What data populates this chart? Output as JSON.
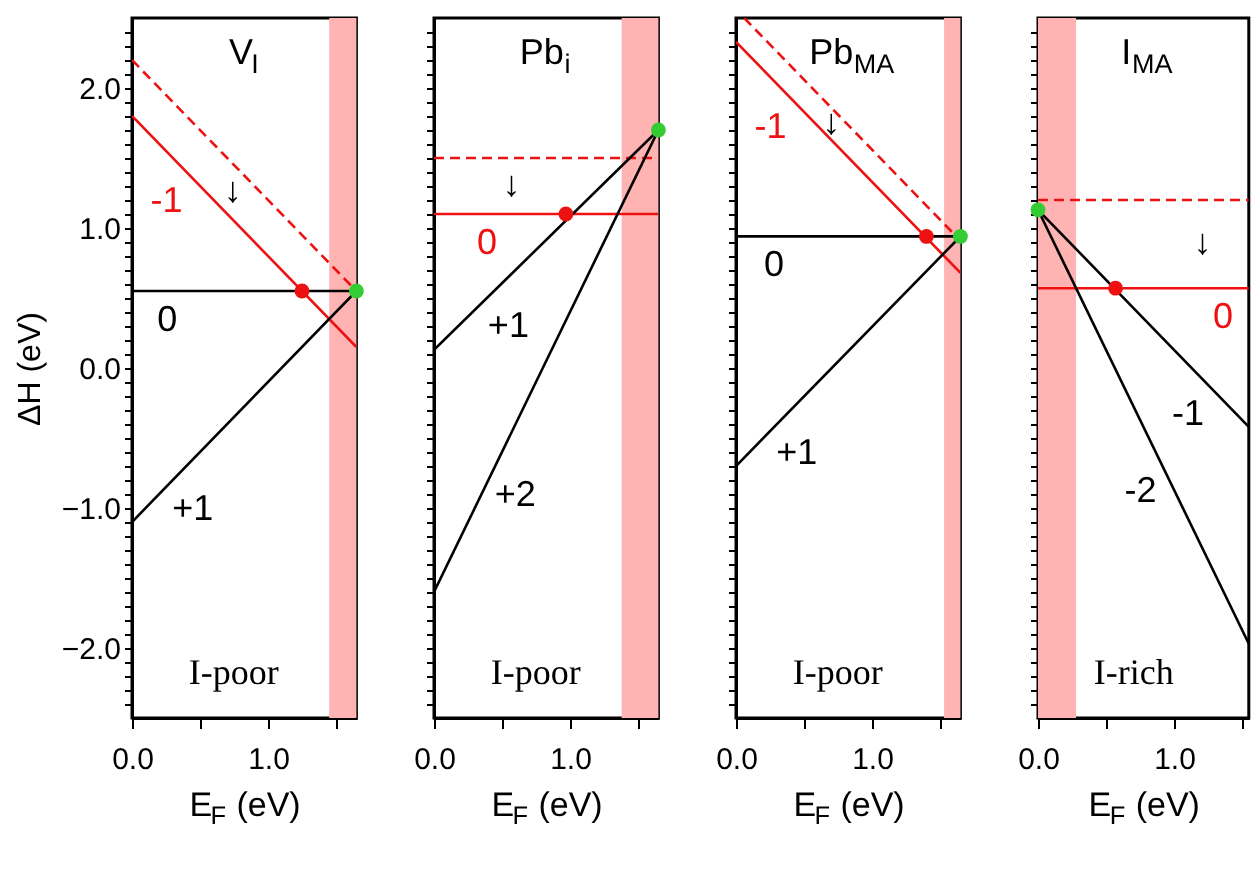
{
  "chart_data": [
    {
      "type": "line",
      "title": "V$_{I}$",
      "xlabel": "E$_{F}$ (eV)",
      "ylabel": "ΔH (eV)",
      "xlim": [
        0,
        1.65
      ],
      "ylim": [
        -2.5,
        2.5
      ],
      "grid": false,
      "xticks": [
        {
          "value": 0,
          "label": "0.0"
        },
        {
          "value": 0.5,
          "label": null
        },
        {
          "value": 1,
          "label": "1.0"
        },
        {
          "value": 1.5,
          "label": null
        }
      ],
      "yticks": [
        {
          "value": -2.4,
          "label": null
        },
        {
          "value": -2.3,
          "label": null
        },
        {
          "value": -2.2,
          "label": null
        },
        {
          "value": -2.1,
          "label": null
        },
        {
          "value": -2,
          "label": "−2.0"
        },
        {
          "value": -1.9,
          "label": null
        },
        {
          "value": -1.8,
          "label": null
        },
        {
          "value": -1.7,
          "label": null
        },
        {
          "value": -1.6,
          "label": null
        },
        {
          "value": -1.5,
          "label": null
        },
        {
          "value": -1.4,
          "label": null
        },
        {
          "value": -1.3,
          "label": null
        },
        {
          "value": -1.2,
          "label": null
        },
        {
          "value": -1.1,
          "label": null
        },
        {
          "value": -1,
          "label": "−1.0"
        },
        {
          "value": -0.9,
          "label": null
        },
        {
          "value": -0.8,
          "label": null
        },
        {
          "value": -0.7,
          "label": null
        },
        {
          "value": -0.6,
          "label": null
        },
        {
          "value": -0.5,
          "label": null
        },
        {
          "value": -0.4,
          "label": null
        },
        {
          "value": -0.3,
          "label": null
        },
        {
          "value": -0.2,
          "label": null
        },
        {
          "value": -0.1,
          "label": null
        },
        {
          "value": 0,
          "label": "0.0"
        },
        {
          "value": 0.1,
          "label": null
        },
        {
          "value": 0.2,
          "label": null
        },
        {
          "value": 0.3,
          "label": null
        },
        {
          "value": 0.4,
          "label": null
        },
        {
          "value": 0.5,
          "label": null
        },
        {
          "value": 0.6,
          "label": null
        },
        {
          "value": 0.7,
          "label": null
        },
        {
          "value": 0.8,
          "label": null
        },
        {
          "value": 0.9,
          "label": null
        },
        {
          "value": 1,
          "label": "1.0"
        },
        {
          "value": 1.1,
          "label": null
        },
        {
          "value": 1.2,
          "label": null
        },
        {
          "value": 1.3,
          "label": null
        },
        {
          "value": 1.4,
          "label": null
        },
        {
          "value": 1.5,
          "label": null
        },
        {
          "value": 1.6,
          "label": null
        },
        {
          "value": 1.7,
          "label": null
        },
        {
          "value": 1.8,
          "label": null
        },
        {
          "value": 1.9,
          "label": null
        },
        {
          "value": 2,
          "label": "2.0"
        },
        {
          "value": 2.1,
          "label": null
        },
        {
          "value": 2.2,
          "label": null
        },
        {
          "value": 2.3,
          "label": null
        },
        {
          "value": 2.4,
          "label": null
        }
      ],
      "bands": [
        {
          "axis": "x",
          "from": 1.45,
          "to": 1.65,
          "color": "#ffb3b3"
        }
      ],
      "series": [
        {
          "color": "#ee1111",
          "line_style": "dashed",
          "x": [
            0,
            1.65
          ],
          "values": [
            2.2,
            0.55
          ]
        },
        {
          "color": "#ee1111",
          "line_style": "solid",
          "x": [
            0,
            1.65
          ],
          "values": [
            1.8,
            0.15
          ]
        },
        {
          "color": "#000000",
          "line_style": "solid",
          "x": [
            0,
            1.65
          ],
          "values": [
            0.55,
            0.55
          ]
        },
        {
          "color": "#000000",
          "line_style": "solid",
          "x": [
            0,
            1.65
          ],
          "values": [
            -1.1,
            0.55
          ]
        },
        {
          "type": "scatter",
          "color": "#ee1111",
          "marker": "circle",
          "x": [
            1.25
          ],
          "values": [
            0.55
          ]
        },
        {
          "type": "scatter",
          "color": "#33cc33",
          "marker": "circle",
          "x": [
            1.65
          ],
          "values": [
            0.55
          ]
        }
      ],
      "annotations": [
        {
          "text": "-1",
          "x": 0.4,
          "y": 1.4
        },
        {
          "text": "↓",
          "x": 0.74,
          "y": 1.46
        },
        {
          "text": "0",
          "x": 0.26,
          "y": 0.55
        },
        {
          "text": "+1",
          "x": 0.3,
          "y": -0.8
        },
        "I-poor"
      ]
    },
    {
      "type": "line",
      "title": "Pb$_{i}$",
      "xlabel": "E$_{F}$ (eV)",
      "xlim": [
        0,
        1.65
      ],
      "ylim": [
        -2.5,
        2.5
      ],
      "grid": false,
      "tick_labels": "x",
      "xticks": [
        {
          "value": 0,
          "label": "0.0"
        },
        {
          "value": 0.5,
          "label": null
        },
        {
          "value": 1,
          "label": "1.0"
        },
        {
          "value": 1.5,
          "label": null
        }
      ],
      "yticks": [
        {
          "value": -2.4,
          "label": null
        },
        {
          "value": -2.3,
          "label": null
        },
        {
          "value": -2.2,
          "label": null
        },
        {
          "value": -2.1,
          "label": null
        },
        {
          "value": -2,
          "label": null
        },
        {
          "value": -1.9,
          "label": null
        },
        {
          "value": -1.8,
          "label": null
        },
        {
          "value": -1.7,
          "label": null
        },
        {
          "value": -1.6,
          "label": null
        },
        {
          "value": -1.5,
          "label": null
        },
        {
          "value": -1.4,
          "label": null
        },
        {
          "value": -1.3,
          "label": null
        },
        {
          "value": -1.2,
          "label": null
        },
        {
          "value": -1.1,
          "label": null
        },
        {
          "value": -1,
          "label": null
        },
        {
          "value": -0.9,
          "label": null
        },
        {
          "value": -0.8,
          "label": null
        },
        {
          "value": -0.7,
          "label": null
        },
        {
          "value": -0.6,
          "label": null
        },
        {
          "value": -0.5,
          "label": null
        },
        {
          "value": -0.4,
          "label": null
        },
        {
          "value": -0.3,
          "label": null
        },
        {
          "value": -0.2,
          "label": null
        },
        {
          "value": -0.1,
          "label": null
        },
        {
          "value": 0,
          "label": null
        },
        {
          "value": 0.1,
          "label": null
        },
        {
          "value": 0.2,
          "label": null
        },
        {
          "value": 0.3,
          "label": null
        },
        {
          "value": 0.4,
          "label": null
        },
        {
          "value": 0.5,
          "label": null
        },
        {
          "value": 0.6,
          "label": null
        },
        {
          "value": 0.7,
          "label": null
        },
        {
          "value": 0.8,
          "label": null
        },
        {
          "value": 0.9,
          "label": null
        },
        {
          "value": 1,
          "label": null
        },
        {
          "value": 1.1,
          "label": null
        },
        {
          "value": 1.2,
          "label": null
        },
        {
          "value": 1.3,
          "label": null
        },
        {
          "value": 1.4,
          "label": null
        },
        {
          "value": 1.5,
          "label": null
        },
        {
          "value": 1.6,
          "label": null
        },
        {
          "value": 1.7,
          "label": null
        },
        {
          "value": 1.8,
          "label": null
        },
        {
          "value": 1.9,
          "label": null
        },
        {
          "value": 2,
          "label": null
        },
        {
          "value": 2.1,
          "label": null
        },
        {
          "value": 2.2,
          "label": null
        },
        {
          "value": 2.3,
          "label": null
        },
        {
          "value": 2.4,
          "label": null
        }
      ],
      "bands": [
        {
          "axis": "x",
          "from": 1.38,
          "to": 1.65,
          "color": "#ffb3b3"
        }
      ],
      "series": [
        {
          "color": "#ee1111",
          "line_style": "dashed",
          "x": [
            0,
            1.65
          ],
          "values": [
            1.5,
            1.5
          ]
        },
        {
          "color": "#ee1111",
          "line_style": "solid",
          "x": [
            0,
            1.65
          ],
          "values": [
            1.1,
            1.1
          ]
        },
        {
          "color": "#000000",
          "line_style": "solid",
          "x": [
            0,
            1.65
          ],
          "values": [
            0.13,
            1.7
          ]
        },
        {
          "color": "#000000",
          "line_style": "solid",
          "x": [
            0,
            1.65
          ],
          "values": [
            -1.6,
            1.7
          ]
        },
        {
          "type": "scatter",
          "color": "#ee1111",
          "marker": "circle",
          "x": [
            0.97
          ],
          "values": [
            1.1
          ]
        },
        {
          "type": "scatter",
          "color": "#33cc33",
          "marker": "circle",
          "x": [
            1.65
          ],
          "values": [
            1.7
          ]
        }
      ],
      "annotations": [
        {
          "text": "↓",
          "x": 0.57,
          "y": 1.5
        },
        {
          "text": "0",
          "x": 0.39,
          "y": 1.1
        },
        {
          "text": "+1",
          "x": 0.4,
          "y": 0.51
        },
        {
          "text": "+2",
          "x": 0.45,
          "y": -0.7
        },
        "I-poor"
      ]
    },
    {
      "type": "line",
      "title": "Pb$_{MA}$",
      "xlabel": "E$_{F}$ (eV)",
      "xlim": [
        0,
        1.65
      ],
      "ylim": [
        -2.5,
        2.5
      ],
      "grid": false,
      "tick_labels": "x",
      "xticks": [
        {
          "value": 0,
          "label": "0.0"
        },
        {
          "value": 0.5,
          "label": null
        },
        {
          "value": 1,
          "label": "1.0"
        },
        {
          "value": 1.5,
          "label": null
        }
      ],
      "yticks": [
        {
          "value": -2.4,
          "label": null
        },
        {
          "value": -2.3,
          "label": null
        },
        {
          "value": -2.2,
          "label": null
        },
        {
          "value": -2.1,
          "label": null
        },
        {
          "value": -2,
          "label": null
        },
        {
          "value": -1.9,
          "label": null
        },
        {
          "value": -1.8,
          "label": null
        },
        {
          "value": -1.7,
          "label": null
        },
        {
          "value": -1.6,
          "label": null
        },
        {
          "value": -1.5,
          "label": null
        },
        {
          "value": -1.4,
          "label": null
        },
        {
          "value": -1.3,
          "label": null
        },
        {
          "value": -1.2,
          "label": null
        },
        {
          "value": -1.1,
          "label": null
        },
        {
          "value": -1,
          "label": null
        },
        {
          "value": -0.9,
          "label": null
        },
        {
          "value": -0.8,
          "label": null
        },
        {
          "value": -0.7,
          "label": null
        },
        {
          "value": -0.6,
          "label": null
        },
        {
          "value": -0.5,
          "label": null
        },
        {
          "value": -0.4,
          "label": null
        },
        {
          "value": -0.3,
          "label": null
        },
        {
          "value": -0.2,
          "label": null
        },
        {
          "value": -0.1,
          "label": null
        },
        {
          "value": 0,
          "label": null
        },
        {
          "value": 0.1,
          "label": null
        },
        {
          "value": 0.2,
          "label": null
        },
        {
          "value": 0.3,
          "label": null
        },
        {
          "value": 0.4,
          "label": null
        },
        {
          "value": 0.5,
          "label": null
        },
        {
          "value": 0.6,
          "label": null
        },
        {
          "value": 0.7,
          "label": null
        },
        {
          "value": 0.8,
          "label": null
        },
        {
          "value": 0.9,
          "label": null
        },
        {
          "value": 1,
          "label": null
        },
        {
          "value": 1.1,
          "label": null
        },
        {
          "value": 1.2,
          "label": null
        },
        {
          "value": 1.3,
          "label": null
        },
        {
          "value": 1.4,
          "label": null
        },
        {
          "value": 1.5,
          "label": null
        },
        {
          "value": 1.6,
          "label": null
        },
        {
          "value": 1.7,
          "label": null
        },
        {
          "value": 1.8,
          "label": null
        },
        {
          "value": 1.9,
          "label": null
        },
        {
          "value": 2,
          "label": null
        },
        {
          "value": 2.1,
          "label": null
        },
        {
          "value": 2.2,
          "label": null
        },
        {
          "value": 2.3,
          "label": null
        },
        {
          "value": 2.4,
          "label": null
        }
      ],
      "bands": [
        {
          "axis": "x",
          "from": 1.53,
          "to": 1.65,
          "color": "#ffb3b3"
        }
      ],
      "series": [
        {
          "color": "#ee1111",
          "line_style": "dashed",
          "x": [
            0.06,
            1.65
          ],
          "values": [
            2.5,
            0.91
          ]
        },
        {
          "color": "#ee1111",
          "line_style": "solid",
          "x": [
            0,
            1.65
          ],
          "values": [
            2.33,
            0.68
          ]
        },
        {
          "color": "#000000",
          "line_style": "solid",
          "x": [
            0,
            1.65
          ],
          "values": [
            0.94,
            0.94
          ]
        },
        {
          "color": "#000000",
          "line_style": "solid",
          "x": [
            0,
            1.65
          ],
          "values": [
            -0.7,
            0.94
          ]
        },
        {
          "type": "scatter",
          "color": "#ee1111",
          "marker": "circle",
          "x": [
            1.4
          ],
          "values": [
            0.94
          ]
        },
        {
          "type": "scatter",
          "color": "#33cc33",
          "marker": "circle",
          "x": [
            1.65
          ],
          "values": [
            0.94
          ]
        }
      ],
      "annotations": [
        {
          "text": "-1",
          "x": 0.4,
          "y": 1.93
        },
        {
          "text": "↓",
          "x": 0.7,
          "y": 1.86
        },
        {
          "text": "0",
          "x": 0.28,
          "y": 0.94
        },
        {
          "text": "+1",
          "x": 0.3,
          "y": -0.4
        },
        "I-poor"
      ]
    },
    {
      "type": "line",
      "title": "I$_{MA}$",
      "xlabel": "E$_{F}$ (eV)",
      "xlim": [
        0,
        1.55
      ],
      "ylim": [
        -2.5,
        2.5
      ],
      "grid": false,
      "tick_labels": "x",
      "xticks": [
        {
          "value": 0,
          "label": "0.0"
        },
        {
          "value": 0.5,
          "label": null
        },
        {
          "value": 1,
          "label": "1.0"
        },
        {
          "value": 1.5,
          "label": null
        }
      ],
      "yticks": [
        {
          "value": -2.4,
          "label": null
        },
        {
          "value": -2.3,
          "label": null
        },
        {
          "value": -2.2,
          "label": null
        },
        {
          "value": -2.1,
          "label": null
        },
        {
          "value": -2,
          "label": null
        },
        {
          "value": -1.9,
          "label": null
        },
        {
          "value": -1.8,
          "label": null
        },
        {
          "value": -1.7,
          "label": null
        },
        {
          "value": -1.6,
          "label": null
        },
        {
          "value": -1.5,
          "label": null
        },
        {
          "value": -1.4,
          "label": null
        },
        {
          "value": -1.3,
          "label": null
        },
        {
          "value": -1.2,
          "label": null
        },
        {
          "value": -1.1,
          "label": null
        },
        {
          "value": -1,
          "label": null
        },
        {
          "value": -0.9,
          "label": null
        },
        {
          "value": -0.8,
          "label": null
        },
        {
          "value": -0.7,
          "label": null
        },
        {
          "value": -0.6,
          "label": null
        },
        {
          "value": -0.5,
          "label": null
        },
        {
          "value": -0.4,
          "label": null
        },
        {
          "value": -0.3,
          "label": null
        },
        {
          "value": -0.2,
          "label": null
        },
        {
          "value": -0.1,
          "label": null
        },
        {
          "value": 0,
          "label": null
        },
        {
          "value": 0.1,
          "label": null
        },
        {
          "value": 0.2,
          "label": null
        },
        {
          "value": 0.3,
          "label": null
        },
        {
          "value": 0.4,
          "label": null
        },
        {
          "value": 0.5,
          "label": null
        },
        {
          "value": 0.6,
          "label": null
        },
        {
          "value": 0.7,
          "label": null
        },
        {
          "value": 0.8,
          "label": null
        },
        {
          "value": 0.9,
          "label": null
        },
        {
          "value": 1,
          "label": null
        },
        {
          "value": 1.1,
          "label": null
        },
        {
          "value": 1.2,
          "label": null
        },
        {
          "value": 1.3,
          "label": null
        },
        {
          "value": 1.4,
          "label": null
        },
        {
          "value": 1.5,
          "label": null
        },
        {
          "value": 1.6,
          "label": null
        },
        {
          "value": 1.7,
          "label": null
        },
        {
          "value": 1.8,
          "label": null
        },
        {
          "value": 1.9,
          "label": null
        },
        {
          "value": 2,
          "label": null
        },
        {
          "value": 2.1,
          "label": null
        },
        {
          "value": 2.2,
          "label": null
        },
        {
          "value": 2.3,
          "label": null
        },
        {
          "value": 2.4,
          "label": null
        }
      ],
      "bands": [
        {
          "axis": "x",
          "from": 0,
          "to": 0.28,
          "color": "#ffb3b3"
        }
      ],
      "series": [
        {
          "color": "#ee1111",
          "line_style": "dashed",
          "x": [
            0,
            1.55
          ],
          "values": [
            1.2,
            1.2
          ]
        },
        {
          "color": "#ee1111",
          "line_style": "solid",
          "x": [
            0,
            1.55
          ],
          "values": [
            0.57,
            0.57
          ]
        },
        {
          "color": "#000000",
          "line_style": "solid",
          "x": [
            0,
            1.55
          ],
          "values": [
            1.13,
            -0.42
          ]
        },
        {
          "color": "#000000",
          "line_style": "solid",
          "x": [
            0,
            1.55
          ],
          "values": [
            1.13,
            -1.97
          ]
        },
        {
          "type": "scatter",
          "color": "#ee1111",
          "marker": "circle",
          "x": [
            0.57
          ],
          "values": [
            0.57
          ]
        },
        {
          "type": "scatter",
          "color": "#33cc33",
          "marker": "circle",
          "x": [
            0
          ],
          "values": [
            1.13
          ]
        }
      ],
      "annotations": [
        {
          "text": "↓",
          "x": 1.21,
          "y": 1.2
        },
        {
          "text": "0",
          "x": 1.36,
          "y": 0.57
        },
        {
          "text": "-1",
          "x": 1.25,
          "y": -0.12
        },
        {
          "text": "-2",
          "x": 0.9,
          "y": -0.67
        },
        "I-rich"
      ]
    }
  ]
}
